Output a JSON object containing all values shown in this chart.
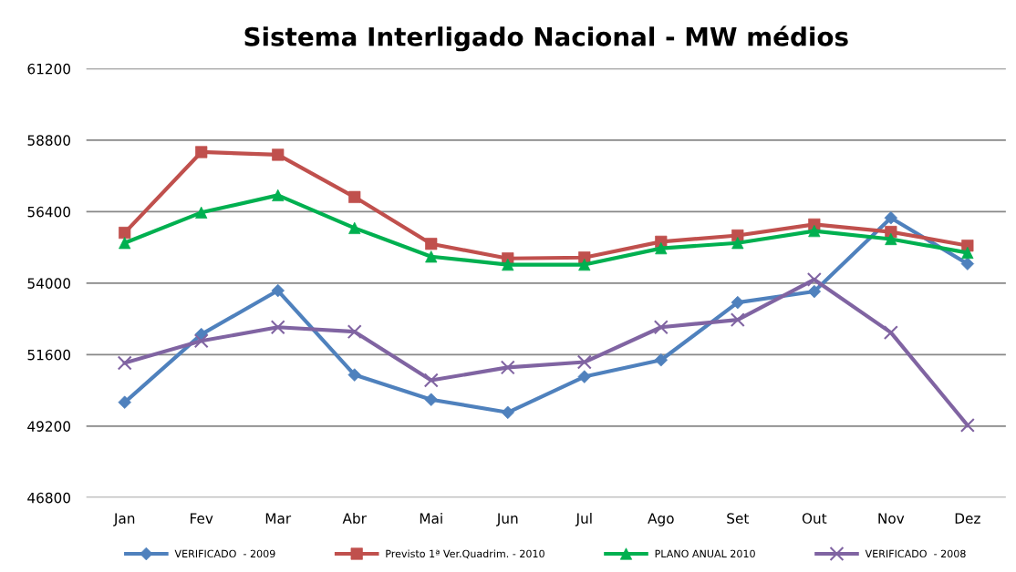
{
  "chart_data": {
    "type": "line",
    "title": "Sistema Interligado Nacional - MW médios",
    "categories": [
      "Jan",
      "Fev",
      "Mar",
      "Abr",
      "Mai",
      "Jun",
      "Jul",
      "Ago",
      "Set",
      "Out",
      "Nov",
      "Dez"
    ],
    "series": [
      {
        "name": "VERIFICADO  - 2009",
        "color": "#4f81bd",
        "marker": "diamond",
        "values": [
          50000,
          52280,
          53750,
          50920,
          50090,
          49660,
          50860,
          51420,
          53350,
          53720,
          56190,
          54650
        ]
      },
      {
        "name": "Previsto 1ª Ver.Quadrim. - 2010",
        "color": "#c0504d",
        "marker": "square",
        "values": [
          55690,
          58400,
          58310,
          56890,
          55320,
          54830,
          54860,
          55390,
          55600,
          55970,
          55720,
          55260
        ]
      },
      {
        "name": "PLANO ANUAL 2010",
        "color": "#00b050",
        "marker": "triangle",
        "values": [
          55350,
          56370,
          56950,
          55850,
          54890,
          54620,
          54620,
          55170,
          55350,
          55750,
          55480,
          55020
        ]
      },
      {
        "name": "VERIFICADO  - 2008",
        "color": "#8064a2",
        "marker": "cross",
        "values": [
          51320,
          52060,
          52520,
          52370,
          50740,
          51170,
          51350,
          52520,
          52770,
          54120,
          52340,
          49230
        ]
      }
    ],
    "ylim": [
      46800,
      61200
    ],
    "yticks": [
      46800,
      49200,
      51600,
      54000,
      56400,
      58800,
      61200
    ],
    "grid": "y",
    "legend": "bottom",
    "line_style": "solid"
  }
}
